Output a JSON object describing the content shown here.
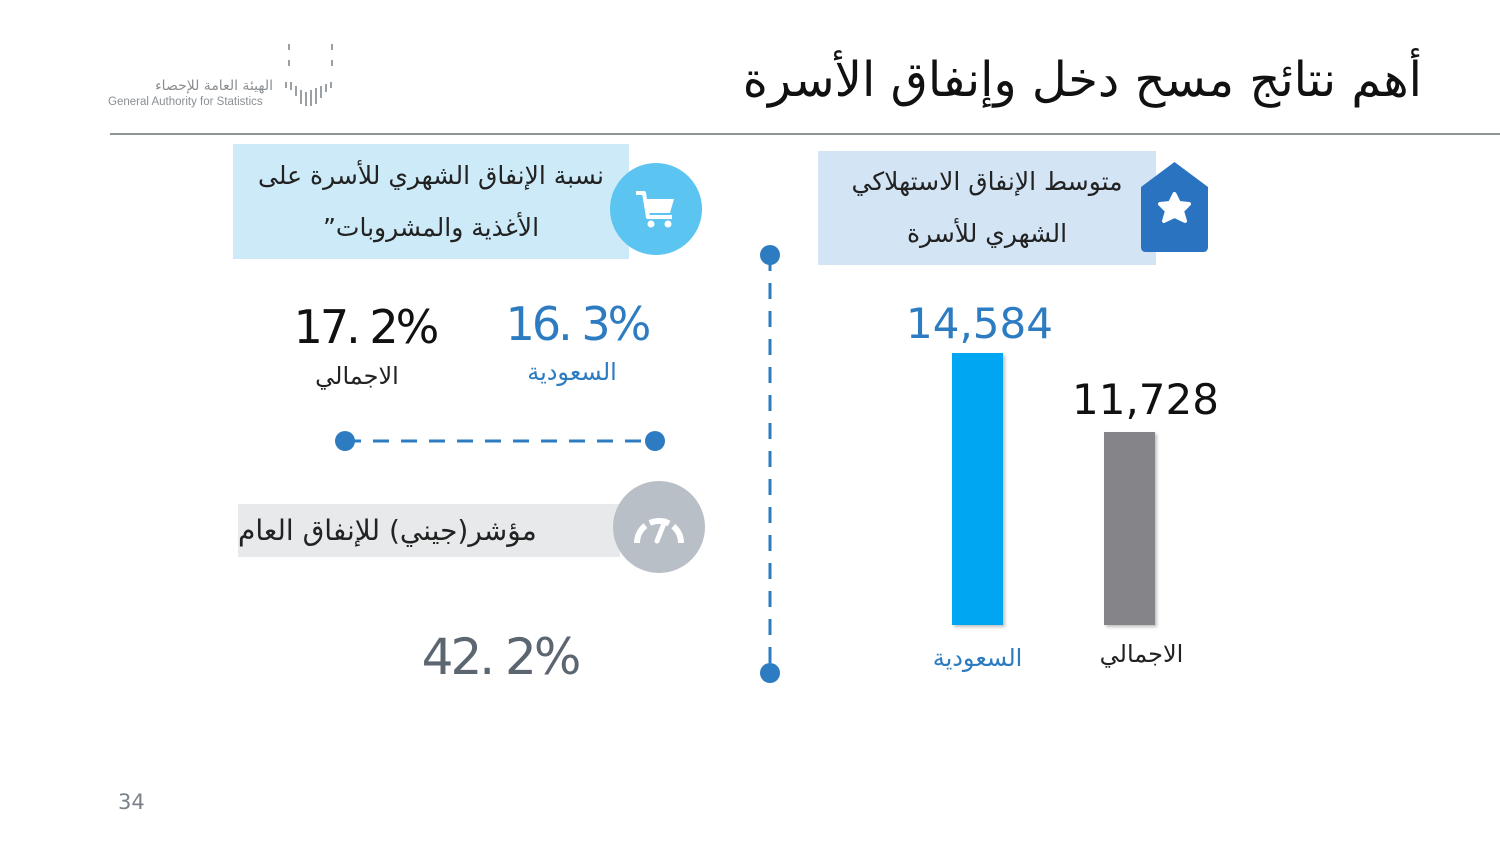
{
  "header": {
    "title": "أهم نتائج مسح دخل وإنفاق الأسرة",
    "logo_ar": "الهيئة العامة للإحصاء",
    "logo_en": "General Authority for Statistics"
  },
  "food_share": {
    "title": "نسبة الإنفاق الشهري للأسرة على الأغذية والمشروبات”",
    "title_line1": "نسبة الإنفاق الشهري للأسرة على",
    "title_line2": "الأغذية والمشروبات”",
    "icon": "shopping-cart-icon",
    "total_value": "17. 2%",
    "total_label": "الاجمالي",
    "saudi_value": "16. 3%",
    "saudi_label": "السعودية"
  },
  "gini": {
    "title": "مؤشر(جيني) للإنفاق العام",
    "icon": "gauge-icon",
    "value": "42. 2%"
  },
  "consumption": {
    "title_line1": "متوسط الإنفاق الاستهلاكي",
    "title_line2": "الشهري للأسرة",
    "icon": "house-star-icon"
  },
  "chart_data": {
    "type": "bar",
    "categories": [
      "السعودية",
      "الاجمالي"
    ],
    "values": [
      14584,
      11728
    ],
    "value_labels": [
      "14,584",
      "11,728"
    ],
    "colors": [
      "#00a6f2",
      "#858589"
    ],
    "title": "متوسط الإنفاق الاستهلاكي الشهري للأسرة",
    "xlabel": "",
    "ylabel": "",
    "grid": false
  },
  "colors": {
    "accent_blue": "#2d7cc1",
    "light_blue": "#5bc4f1"
  },
  "page_number": "34"
}
